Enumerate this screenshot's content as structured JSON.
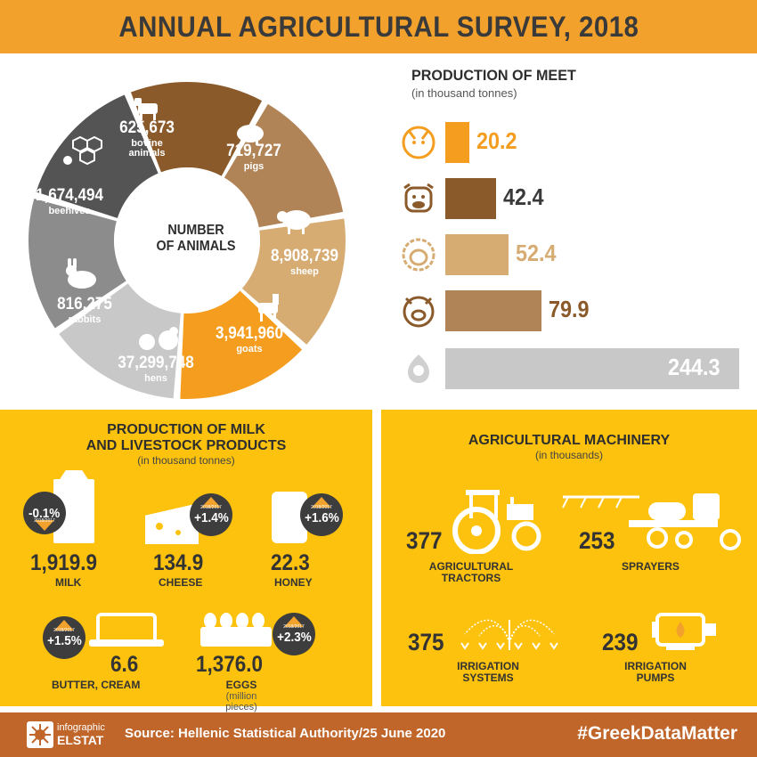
{
  "header": {
    "title": "ANNUAL AGRICULTURAL SURVEY, 2018"
  },
  "animals": {
    "center_label_1": "NUMBER",
    "center_label_2": "OF ANIMALS",
    "segments": [
      {
        "value": "625,673",
        "label": "bovine animals",
        "color": "#8b5a2b",
        "icon": "cow-icon"
      },
      {
        "value": "719,727",
        "label": "pigs",
        "color": "#b08457",
        "icon": "pig-icon"
      },
      {
        "value": "8,908,739",
        "label": "sheep",
        "color": "#d6ac72",
        "icon": "sheep-icon"
      },
      {
        "value": "3,941,960",
        "label": "goats",
        "color": "#f49d1f",
        "icon": "goat-icon"
      },
      {
        "value": "37,299,748",
        "label": "hens",
        "color": "#c8c8c8",
        "icon": "hen-icon"
      },
      {
        "value": "816,275",
        "label": "rabbits",
        "color": "#8c8c8c",
        "icon": "rabbit-icon"
      },
      {
        "value": "1,674,494",
        "label": "beehives",
        "color": "#545454",
        "icon": "beehive-icon"
      }
    ]
  },
  "meat": {
    "title": "PRODUCTION OF MEET",
    "subtitle": "(in thousand tonnes)",
    "rows": [
      {
        "value": "20.2",
        "num": 20.2,
        "color": "#f49d1f",
        "text_color": "#f49d1f",
        "icon": "goat-icon"
      },
      {
        "value": "42.4",
        "num": 42.4,
        "color": "#8b5a2b",
        "text_color": "#3a3a3a",
        "icon": "cow-icon"
      },
      {
        "value": "52.4",
        "num": 52.4,
        "color": "#d6ac72",
        "text_color": "#d6ac72",
        "icon": "sheep-icon"
      },
      {
        "value": "79.9",
        "num": 79.9,
        "color": "#b08457",
        "text_color": "#8b5a2b",
        "icon": "pig-icon"
      },
      {
        "value": "244.3",
        "num": 244.3,
        "color": "#c8c8c8",
        "text_color": "#ffffff",
        "icon": "hen-icon"
      }
    ]
  },
  "milk": {
    "title_1": "PRODUCTION OF MILK",
    "title_2": "AND LIVESTOCK PRODUCTS",
    "subtitle": "(in thousand tonnes)",
    "badge_year": "2018/2017",
    "milk": {
      "value": "1,919.9",
      "label": "MILK",
      "change": "-0.1%"
    },
    "cheese": {
      "value": "134.9",
      "label": "CHEESE",
      "change": "+1.4%"
    },
    "honey": {
      "value": "22.3",
      "label": "HONEY",
      "change": "+1.6%"
    },
    "butter": {
      "value": "6.6",
      "label": "BUTTER, CREAM",
      "change": "+1.5%"
    },
    "eggs": {
      "value": "1,376.0",
      "label": "EGGS",
      "note": "(million pieces)",
      "change": "+2.3%"
    }
  },
  "machinery": {
    "title": "AGRICULTURAL MACHINERY",
    "subtitle": "(in thousands)",
    "tractors": {
      "value": "377",
      "label_1": "AGRICULTURAL",
      "label_2": "TRACTORS"
    },
    "sprayers": {
      "value": "253",
      "label_1": "SPRAYERS"
    },
    "irrigation": {
      "value": "375",
      "label_1": "IRRIGATION",
      "label_2": "SYSTEMS"
    },
    "pumps": {
      "value": "239",
      "label_1": "IRRIGATION",
      "label_2": "PUMPS"
    }
  },
  "footer": {
    "logo_line_1": "infographic",
    "logo_line_2": "ELSTAT",
    "source": "Source: Hellenic Statistical Authority/25 June 2020",
    "hashtag": "#GreekDataMatter"
  }
}
